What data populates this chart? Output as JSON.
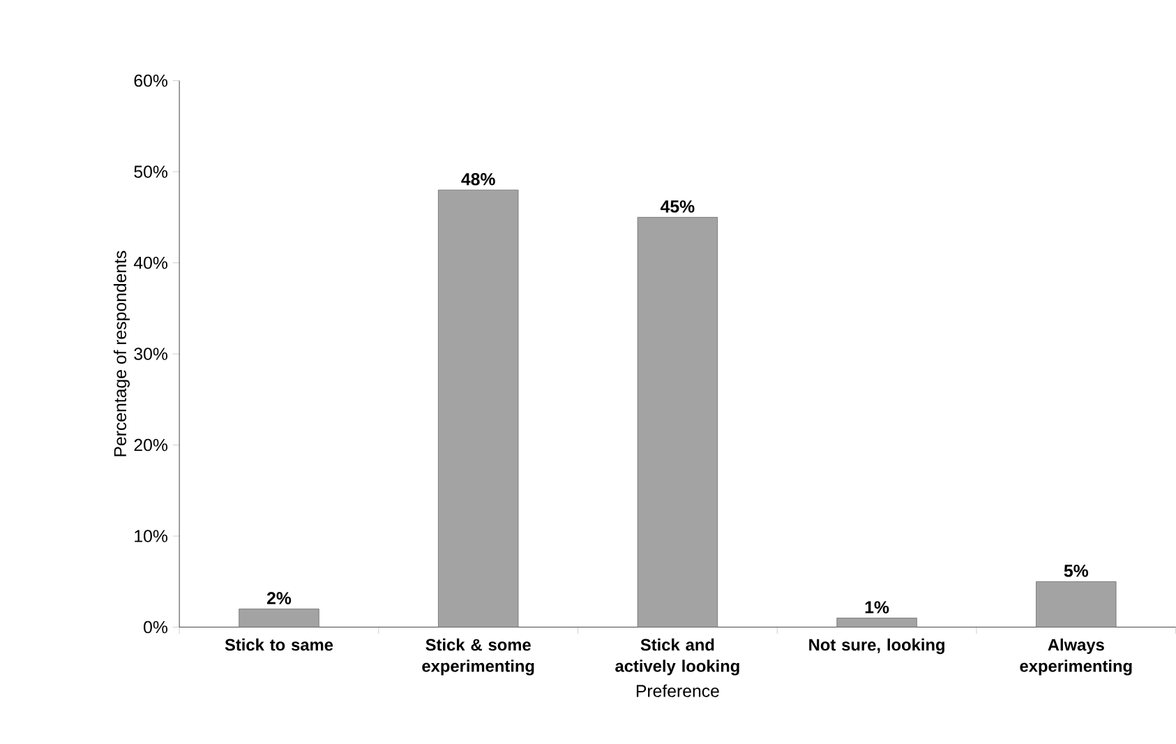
{
  "chart_data": {
    "type": "bar",
    "xlabel": "Preference",
    "ylabel": "Percentage of respondents",
    "categories": [
      "Stick to same",
      "Stick & some experimenting",
      "Stick and actively looking",
      "Not sure, looking",
      "Always experimenting"
    ],
    "values": [
      2,
      48,
      45,
      1,
      5
    ],
    "value_labels": [
      "2%",
      "48%",
      "45%",
      "1%",
      "5%"
    ],
    "color": "#a3a3a3",
    "ylim": [
      0,
      60
    ],
    "yticks": [
      {
        "value": 0,
        "label": "0%"
      },
      {
        "value": 10,
        "label": "10%"
      },
      {
        "value": 20,
        "label": "20%"
      },
      {
        "value": 30,
        "label": "30%"
      },
      {
        "value": 40,
        "label": "40%"
      },
      {
        "value": 50,
        "label": "50%"
      },
      {
        "value": 60,
        "label": "60%"
      }
    ],
    "marker": "none"
  }
}
